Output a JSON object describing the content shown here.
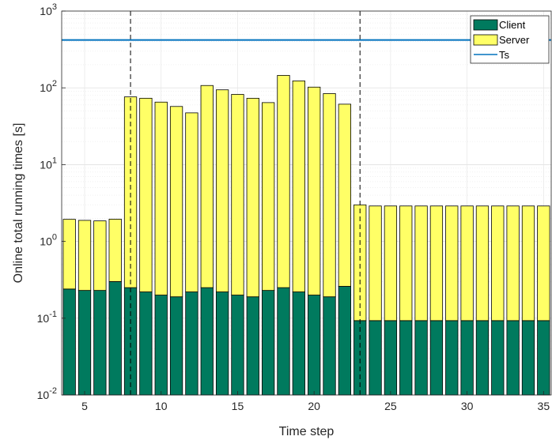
{
  "chart_data": {
    "type": "bar",
    "stacked": true,
    "xlabel": "Time step",
    "ylabel": "Online total running times [s]",
    "yscale": "log",
    "ylim": [
      0.01,
      1000
    ],
    "xlim": [
      3.5,
      35.5
    ],
    "x_ticks": [
      5,
      10,
      15,
      20,
      25,
      30,
      35
    ],
    "y_ticks": [
      {
        "base": "10",
        "exp": "-2",
        "value": 0.01
      },
      {
        "base": "10",
        "exp": "-1",
        "value": 0.1
      },
      {
        "base": "10",
        "exp": "0",
        "value": 1
      },
      {
        "base": "10",
        "exp": "1",
        "value": 10
      },
      {
        "base": "10",
        "exp": "2",
        "value": 100
      },
      {
        "base": "10",
        "exp": "3",
        "value": 1000
      }
    ],
    "grid": true,
    "legend_position": "top-right",
    "x": [
      4,
      5,
      6,
      7,
      8,
      9,
      10,
      11,
      12,
      13,
      14,
      15,
      16,
      17,
      18,
      19,
      20,
      21,
      22,
      23,
      24,
      25,
      26,
      27,
      28,
      29,
      30,
      31,
      32,
      33,
      34,
      35
    ],
    "series": [
      {
        "name": "Client",
        "color": "#007a5e",
        "values": [
          0.24,
          0.23,
          0.23,
          0.3,
          0.25,
          0.22,
          0.2,
          0.19,
          0.22,
          0.25,
          0.22,
          0.2,
          0.19,
          0.23,
          0.25,
          0.22,
          0.2,
          0.19,
          0.26,
          0.093,
          0.093,
          0.093,
          0.093,
          0.093,
          0.093,
          0.093,
          0.093,
          0.093,
          0.093,
          0.093,
          0.093,
          0.093
        ]
      },
      {
        "name": "Server",
        "color": "#ffff66",
        "values": [
          1.7,
          1.65,
          1.62,
          1.65,
          76,
          73,
          65,
          57,
          47,
          107,
          94,
          82,
          73,
          64,
          145,
          123,
          102,
          84,
          61,
          2.9,
          2.8,
          2.8,
          2.8,
          2.8,
          2.8,
          2.8,
          2.8,
          2.8,
          2.8,
          2.8,
          2.8,
          2.8
        ]
      }
    ],
    "reference_line": {
      "name": "Ts",
      "value": 420,
      "color": "#0072bd"
    },
    "vertical_lines": [
      8,
      23
    ]
  }
}
